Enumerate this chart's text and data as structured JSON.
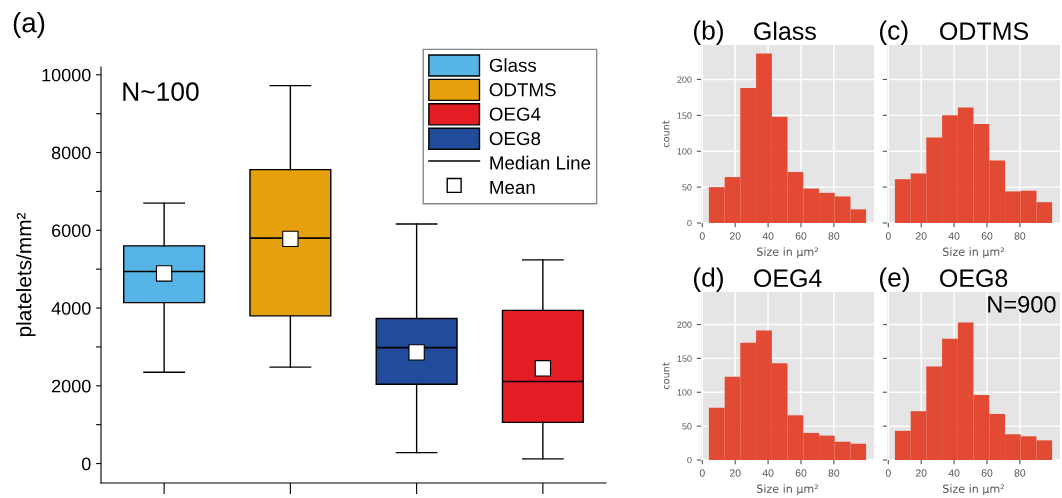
{
  "chart_data": [
    {
      "type": "box",
      "categories": [
        null,
        null,
        null,
        null
      ],
      "ylabel": "platelets/mm²",
      "ylim": [
        -500,
        10200
      ],
      "yticks": [
        0,
        {
          "value": 1000,
          "label": null
        },
        2000,
        {
          "value": 3000,
          "label": null
        },
        4000,
        {
          "value": 5000,
          "label": null
        },
        6000,
        {
          "value": 7000,
          "label": null
        },
        8000,
        {
          "value": 9000,
          "label": null
        },
        10000
      ],
      "legend": "top right",
      "grid": false,
      "marker": "square",
      "annotations": [
        "(a)",
        "N~100",
        "Median Line",
        "Mean"
      ],
      "series": [
        {
          "name": "Glass",
          "color": "#56b4e6",
          "boxes": [
            {
              "low": 2350,
              "q1": 4140,
              "median": 4940,
              "q3": 5600,
              "high": 6700,
              "mean": 4890
            },
            null,
            null,
            null
          ]
        },
        {
          "name": "ODTMS",
          "color": "#e6a00b",
          "boxes": [
            null,
            {
              "low": 2480,
              "q1": 3800,
              "median": 5800,
              "q3": 7560,
              "high": 9720,
              "mean": 5780
            },
            null,
            null
          ]
        },
        {
          "name": "OEG4",
          "color": "#e41d24",
          "boxes": [
            null,
            null,
            null,
            {
              "low": 120,
              "q1": 1060,
              "median": 2110,
              "q3": 3940,
              "high": 5240,
              "mean": 2450
            }
          ]
        },
        {
          "name": "OEG8",
          "color": "#224b9b",
          "boxes": [
            null,
            null,
            {
              "low": 280,
              "q1": 2040,
              "median": 2980,
              "q3": 3730,
              "high": 6160,
              "mean": 2860
            },
            null
          ]
        }
      ]
    },
    {
      "type": "histogram",
      "title": "Glass",
      "ylabel": "count",
      "xlabel": "Size in μm²",
      "annotations": [
        "(b)"
      ],
      "bins": [
        4,
        13.6,
        23.1,
        32.7,
        42.3,
        51.8,
        61.4,
        71,
        80.5,
        90.1,
        99.6
      ],
      "values": [
        50,
        64,
        188,
        236,
        148,
        71,
        48,
        42,
        37,
        19
      ],
      "color": "#e24a33",
      "xlim": [
        -0.8,
        104.4
      ],
      "xticks": [
        0,
        20,
        40,
        60,
        80
      ],
      "ylim": [
        0,
        248
      ],
      "yticks": [
        0,
        50,
        100,
        150,
        200
      ],
      "grid": true
    },
    {
      "type": "histogram",
      "title": "ODTMS",
      "xlabel": "Size in μm²",
      "annotations": [
        "(c)"
      ],
      "tick_labels": "x",
      "bins": [
        4,
        13.6,
        23.1,
        32.7,
        42.3,
        51.8,
        61.4,
        71,
        80.5,
        90.1,
        99.6
      ],
      "values": [
        61,
        69,
        119,
        150,
        161,
        138,
        87,
        44,
        45,
        29
      ],
      "color": "#e24a33",
      "xlim": [
        -0.8,
        104.4
      ],
      "xticks": [
        0,
        20,
        40,
        60,
        80
      ],
      "ylim": [
        0,
        248
      ],
      "yticks": [
        0,
        50,
        100,
        150,
        200
      ],
      "grid": true
    },
    {
      "type": "histogram",
      "title": "OEG4",
      "ylabel": "count",
      "xlabel": "Size in μm²",
      "annotations": [
        "(d)"
      ],
      "bins": [
        4,
        13.6,
        23.1,
        32.7,
        42.3,
        51.8,
        61.4,
        71,
        80.5,
        90.1,
        99.6
      ],
      "values": [
        77,
        123,
        173,
        191,
        143,
        66,
        40,
        36,
        27,
        24
      ],
      "color": "#e24a33",
      "xlim": [
        -0.8,
        104.4
      ],
      "xticks": [
        0,
        20,
        40,
        60,
        80
      ],
      "ylim": [
        0,
        248
      ],
      "yticks": [
        0,
        50,
        100,
        150,
        200
      ],
      "grid": true
    },
    {
      "type": "histogram",
      "title": "OEG8",
      "xlabel": "Size in μm²",
      "annotations": [
        "(e)",
        "N=900"
      ],
      "tick_labels": "x",
      "bins": [
        4,
        13.6,
        23.1,
        32.7,
        42.3,
        51.8,
        61.4,
        71,
        80.5,
        90.1,
        99.6
      ],
      "values": [
        43,
        72,
        138,
        179,
        203,
        96,
        68,
        38,
        35,
        29
      ],
      "color": "#e24a33",
      "xlim": [
        -0.8,
        104.4
      ],
      "xticks": [
        0,
        20,
        40,
        60,
        80
      ],
      "ylim": [
        0,
        248
      ],
      "yticks": [
        0,
        50,
        100,
        150,
        200
      ],
      "grid": true
    }
  ]
}
